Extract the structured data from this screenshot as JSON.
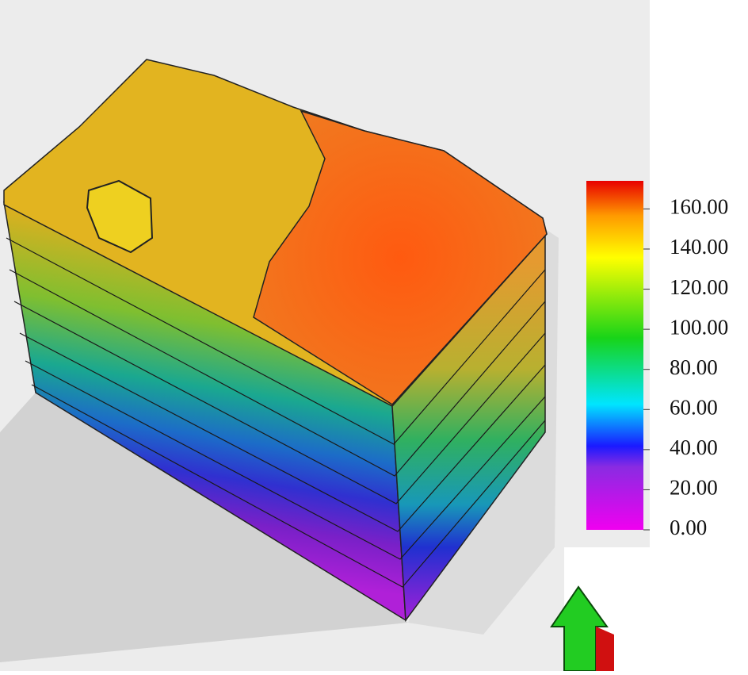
{
  "colorbar": {
    "range": [
      0,
      174
    ],
    "ticks": [
      {
        "value": 0,
        "label": "0.00"
      },
      {
        "value": 20,
        "label": "20.00"
      },
      {
        "value": 40,
        "label": "40.00"
      },
      {
        "value": 60,
        "label": "60.00"
      },
      {
        "value": 80,
        "label": "80.00"
      },
      {
        "value": 100,
        "label": "100.00"
      },
      {
        "value": 120,
        "label": "120.00"
      },
      {
        "value": 140,
        "label": "140.00"
      },
      {
        "value": 160,
        "label": "160.00"
      }
    ]
  }
}
